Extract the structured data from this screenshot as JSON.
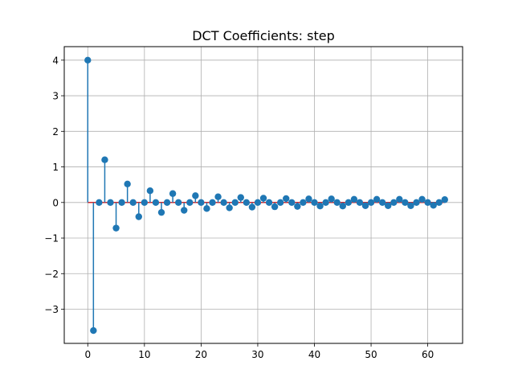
{
  "chart_data": {
    "type": "stem",
    "title": "DCT Coefficients: step",
    "xlabel": "",
    "ylabel": "",
    "xlim": [
      -4.15,
      66.15
    ],
    "ylim": [
      -3.96,
      4.38
    ],
    "xticks": [
      0,
      10,
      20,
      30,
      40,
      50,
      60
    ],
    "yticks": [
      4,
      3,
      2,
      1,
      0,
      -1,
      -2,
      -3
    ],
    "ytick_labels": [
      "4",
      "3",
      "2",
      "1",
      "0",
      "−1",
      "−2",
      "−3"
    ],
    "grid": true,
    "baseline": 0,
    "x": [
      0,
      1,
      2,
      3,
      4,
      5,
      6,
      7,
      8,
      9,
      10,
      11,
      12,
      13,
      14,
      15,
      16,
      17,
      18,
      19,
      20,
      21,
      22,
      23,
      24,
      25,
      26,
      27,
      28,
      29,
      30,
      31,
      32,
      33,
      34,
      35,
      36,
      37,
      38,
      39,
      40,
      41,
      42,
      43,
      44,
      45,
      46,
      47,
      48,
      49,
      50,
      51,
      52,
      53,
      54,
      55,
      56,
      57,
      58,
      59,
      60,
      61,
      62,
      63
    ],
    "values": [
      4.0,
      -3.6,
      0,
      1.2,
      0,
      -0.72,
      0,
      0.52,
      0,
      -0.4,
      0,
      0.33,
      0,
      -0.28,
      0,
      0.25,
      0,
      -0.22,
      0,
      0.19,
      0,
      -0.17,
      0,
      0.16,
      0,
      -0.15,
      0,
      0.14,
      0,
      -0.13,
      0,
      0.12,
      0,
      -0.12,
      0,
      0.11,
      0,
      -0.11,
      0,
      0.1,
      0,
      -0.1,
      0,
      0.1,
      0,
      -0.1,
      0,
      0.09,
      0,
      -0.09,
      0,
      0.09,
      0,
      -0.09,
      0,
      0.09,
      0,
      -0.09,
      0,
      0.09,
      0,
      -0.08,
      0,
      0.08
    ]
  },
  "colors": {
    "stem": "#1f77b4",
    "marker": "#1f77b4",
    "baseline": "#d62728",
    "grid": "#b0b0b0",
    "axis": "#000000"
  }
}
